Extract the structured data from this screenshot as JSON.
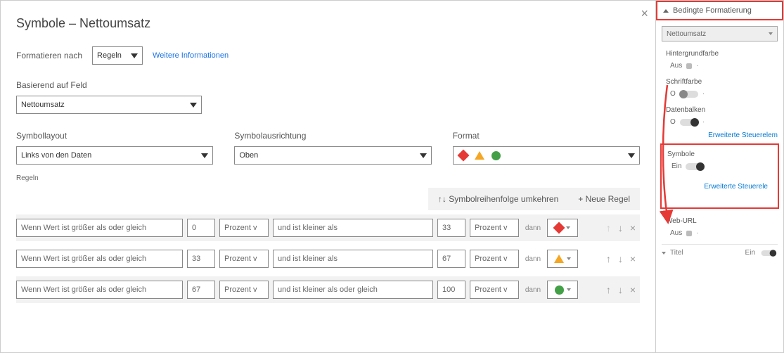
{
  "dialog": {
    "title": "Symbole – Nettoumsatz",
    "formatieren_label": "Formatieren nach",
    "formatieren_value": "Regeln",
    "more_info": "Weitere Informationen",
    "basierend_label": "Basierend auf Feld",
    "basierend_value": "Nettoumsatz",
    "layout_label": "Symbollayout",
    "layout_value": "Links von den Daten",
    "ausrichtung_label": "Symbolausrichtung",
    "ausrichtung_value": "Oben",
    "format_label": "Format",
    "regeln_label": "Regeln",
    "reverse_btn": "↑↓ Symbolreihenfolge umkehren",
    "new_rule_btn": "+ Neue Regel",
    "shape_colors": [
      "#e53935",
      "#f5a623",
      "#43a047"
    ],
    "rules": [
      {
        "wenn": "Wenn Wert ist größer als oder gleich",
        "min": "0",
        "minUnit": "Prozent v",
        "und": "und ist kleiner als",
        "max": "33",
        "maxUnit": "Prozent v",
        "dann": "dann",
        "shape": "diamond",
        "color": "#e53935",
        "alt": true,
        "upDim": true
      },
      {
        "wenn": "Wenn Wert ist größer als oder gleich",
        "min": "33",
        "minUnit": "Prozent v",
        "und": "und ist kleiner als",
        "max": "67",
        "maxUnit": "Prozent v",
        "dann": "dann",
        "shape": "triangle",
        "color": "#f5a623",
        "alt": false,
        "upDim": false
      },
      {
        "wenn": "Wenn Wert ist größer als oder gleich",
        "min": "67",
        "minUnit": "Prozent v",
        "und": "und ist kleiner als oder gleich",
        "max": "100",
        "maxUnit": "Prozent v",
        "dann": "dann",
        "shape": "circle",
        "color": "#43a047",
        "alt": true,
        "upDim": false
      }
    ]
  },
  "panel": {
    "header": "Bedingte Formatierung",
    "field_value": "Nettoumsatz",
    "opts": [
      {
        "title": "Hintergrundfarbe",
        "state_label": "Aus",
        "on": false,
        "pill": true
      },
      {
        "title": "Schriftfarbe",
        "state_label": "O",
        "on": false,
        "pill": false
      },
      {
        "title": "Datenbalken",
        "state_label": "O",
        "on": true,
        "pill": false
      }
    ],
    "adv_label": "Erweiterte Steuerelem",
    "symbole": {
      "title": "Symbole",
      "state_label": "Ein",
      "adv": "Erweiterte Steuerele"
    },
    "weburl": {
      "title": "Web-URL",
      "state_label": "Aus"
    },
    "titel": {
      "label": "Titel",
      "state": "Ein"
    }
  }
}
